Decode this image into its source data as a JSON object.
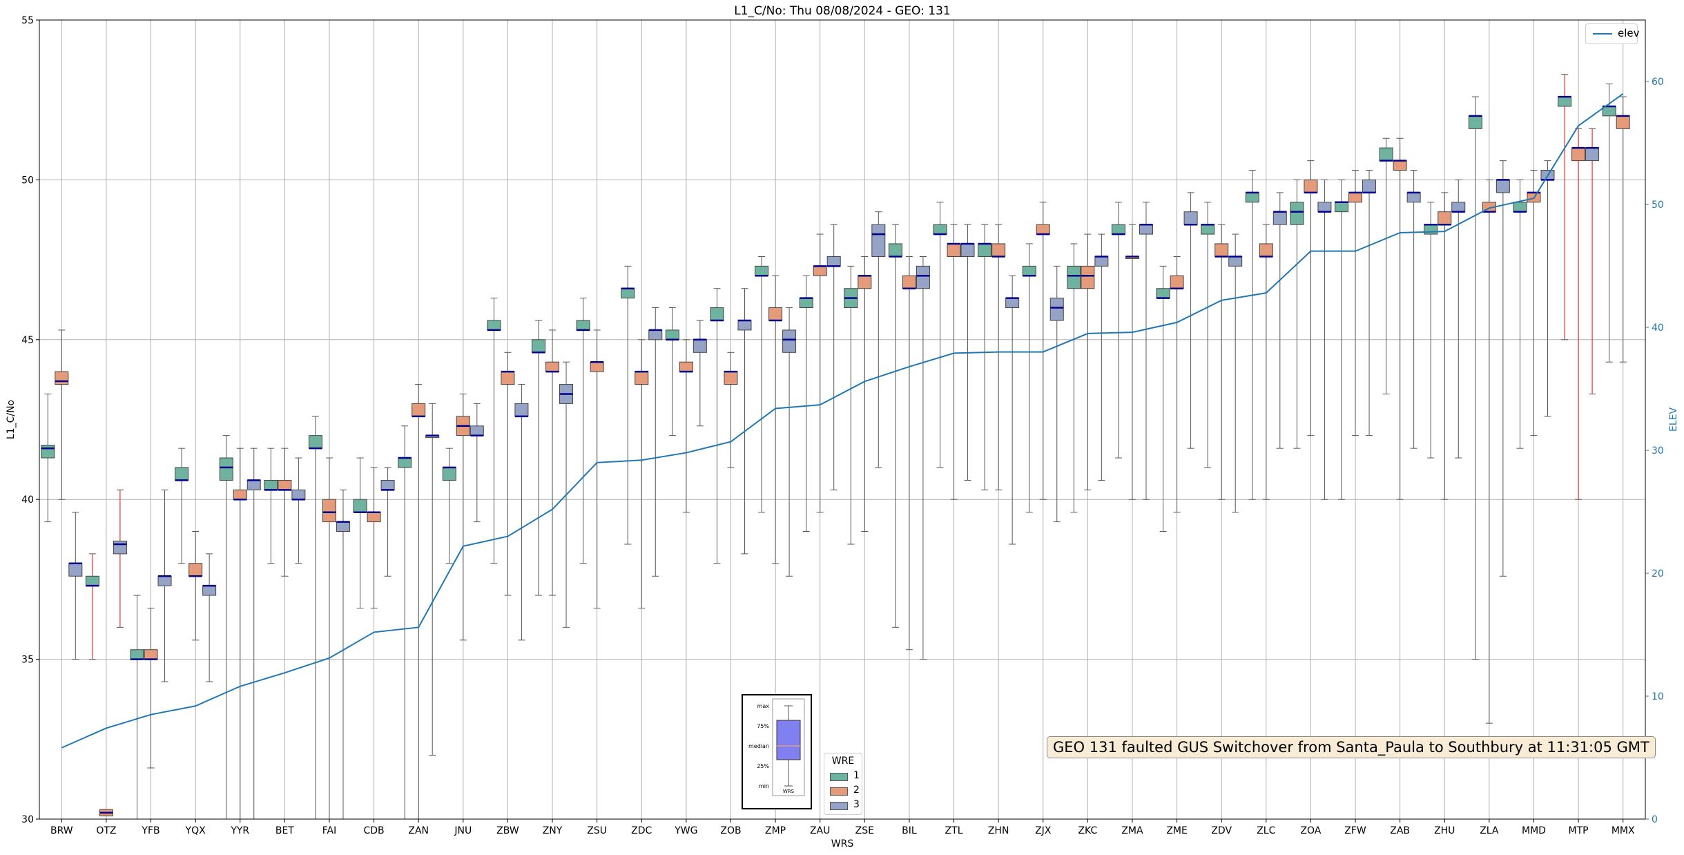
{
  "chart_data": {
    "type": "box",
    "title": "L1_C/No: Thu 08/08/2024 - GEO: 131",
    "xlabel": "WRS",
    "ylabel": "L1_C/No",
    "y2label": "ELEV",
    "ylim": [
      30,
      55
    ],
    "y2lim": [
      0,
      65
    ],
    "yticks": [
      30,
      35,
      40,
      45,
      50,
      55
    ],
    "y2ticks": [
      0,
      10,
      20,
      30,
      40,
      50,
      60
    ],
    "grid": true,
    "categories": [
      "BRW",
      "OTZ",
      "YFB",
      "YQX",
      "YYR",
      "BET",
      "FAI",
      "CDB",
      "ZAN",
      "JNU",
      "ZBW",
      "ZNY",
      "ZSU",
      "ZDC",
      "YWG",
      "ZOB",
      "ZMP",
      "ZAU",
      "ZSE",
      "BIL",
      "ZTL",
      "ZHN",
      "ZJX",
      "ZKC",
      "ZMA",
      "ZME",
      "ZDV",
      "ZLC",
      "ZOA",
      "ZFW",
      "ZAB",
      "ZHU",
      "ZLA",
      "MMD",
      "MTP",
      "MMX"
    ],
    "series": [
      {
        "name": "elev",
        "values": [
          5.8,
          7.4,
          8.5,
          9.2,
          10.8,
          11.9,
          13.1,
          15.2,
          15.6,
          22.2,
          23.0,
          25.2,
          29.0,
          29.2,
          29.8,
          30.7,
          33.4,
          33.7,
          35.6,
          36.8,
          37.9,
          38.0,
          38.0,
          39.5,
          39.6,
          40.4,
          42.2,
          42.8,
          46.2,
          46.2,
          47.7,
          47.8,
          49.7,
          50.5,
          56.4,
          59.0
        ]
      }
    ],
    "groups": [
      {
        "name": "1",
        "color": "#6db39f"
      },
      {
        "name": "2",
        "color": "#e59a7a"
      },
      {
        "name": "3",
        "color": "#94a3c6"
      }
    ],
    "boxes": [
      {
        "cat": 0,
        "g": 1,
        "min": 39.3,
        "q1": 41.3,
        "med": 41.6,
        "q3": 41.7,
        "max": 43.3
      },
      {
        "cat": 0,
        "g": 2,
        "min": 40.0,
        "q1": 43.6,
        "med": 43.7,
        "q3": 44.0,
        "max": 45.3
      },
      {
        "cat": 0,
        "g": 3,
        "min": 35.0,
        "q1": 37.6,
        "med": 38.0,
        "q3": 38.0,
        "max": 39.6
      },
      {
        "cat": 1,
        "g": 1,
        "min": 35.0,
        "q1": 37.3,
        "med": 37.3,
        "q3": 37.6,
        "max": 38.3,
        "red": true
      },
      {
        "cat": 1,
        "g": 2,
        "min": 30.1,
        "q1": 30.1,
        "med": 30.2,
        "q3": 30.3,
        "max": 30.3
      },
      {
        "cat": 1,
        "g": 3,
        "min": 36.0,
        "q1": 38.3,
        "med": 38.6,
        "q3": 38.7,
        "max": 40.3,
        "red": true
      },
      {
        "cat": 2,
        "g": 1,
        "min": 30.0,
        "q1": 35.0,
        "med": 35.0,
        "q3": 35.3,
        "max": 37.0
      },
      {
        "cat": 2,
        "g": 2,
        "min": 31.6,
        "q1": 35.0,
        "med": 35.0,
        "q3": 35.3,
        "max": 36.6
      },
      {
        "cat": 2,
        "g": 3,
        "min": 34.3,
        "q1": 37.3,
        "med": 37.6,
        "q3": 37.6,
        "max": 40.3
      },
      {
        "cat": 3,
        "g": 1,
        "min": 38.0,
        "q1": 40.6,
        "med": 40.6,
        "q3": 41.0,
        "max": 41.6
      },
      {
        "cat": 3,
        "g": 2,
        "min": 35.6,
        "q1": 37.6,
        "med": 37.6,
        "q3": 38.0,
        "max": 39.0
      },
      {
        "cat": 3,
        "g": 3,
        "min": 34.3,
        "q1": 37.0,
        "med": 37.3,
        "q3": 37.3,
        "max": 38.3
      },
      {
        "cat": 4,
        "g": 1,
        "min": 30.0,
        "q1": 40.6,
        "med": 41.0,
        "q3": 41.3,
        "max": 42.0
      },
      {
        "cat": 4,
        "g": 2,
        "min": 30.0,
        "q1": 40.0,
        "med": 40.0,
        "q3": 40.3,
        "max": 41.6
      },
      {
        "cat": 4,
        "g": 3,
        "min": 30.0,
        "q1": 40.3,
        "med": 40.6,
        "q3": 40.6,
        "max": 41.6
      },
      {
        "cat": 5,
        "g": 1,
        "min": 38.0,
        "q1": 40.3,
        "med": 40.3,
        "q3": 40.6,
        "max": 41.6
      },
      {
        "cat": 5,
        "g": 2,
        "min": 37.6,
        "q1": 40.3,
        "med": 40.3,
        "q3": 40.6,
        "max": 41.6
      },
      {
        "cat": 5,
        "g": 3,
        "min": 38.0,
        "q1": 40.0,
        "med": 40.0,
        "q3": 40.3,
        "max": 41.3
      },
      {
        "cat": 6,
        "g": 1,
        "min": 30.0,
        "q1": 41.6,
        "med": 41.6,
        "q3": 42.0,
        "max": 42.6
      },
      {
        "cat": 6,
        "g": 2,
        "min": 30.0,
        "q1": 39.3,
        "med": 39.6,
        "q3": 40.0,
        "max": 41.3
      },
      {
        "cat": 6,
        "g": 3,
        "min": 30.0,
        "q1": 39.0,
        "med": 39.3,
        "q3": 39.3,
        "max": 40.3
      },
      {
        "cat": 7,
        "g": 1,
        "min": 36.6,
        "q1": 39.6,
        "med": 39.6,
        "q3": 40.0,
        "max": 41.3
      },
      {
        "cat": 7,
        "g": 2,
        "min": 36.6,
        "q1": 39.3,
        "med": 39.6,
        "q3": 39.6,
        "max": 41.0
      },
      {
        "cat": 7,
        "g": 3,
        "min": 37.6,
        "q1": 40.3,
        "med": 40.3,
        "q3": 40.6,
        "max": 41.0
      },
      {
        "cat": 8,
        "g": 1,
        "min": 30.0,
        "q1": 41.0,
        "med": 41.3,
        "q3": 41.3,
        "max": 42.3
      },
      {
        "cat": 8,
        "g": 2,
        "min": 30.0,
        "q1": 42.6,
        "med": 42.6,
        "q3": 43.0,
        "max": 43.6
      },
      {
        "cat": 8,
        "g": 3,
        "min": 32.0,
        "q1": 42.0,
        "med": 42.0,
        "q3": 42.0,
        "max": 43.0
      },
      {
        "cat": 9,
        "g": 1,
        "min": 38.0,
        "q1": 40.6,
        "med": 41.0,
        "q3": 41.0,
        "max": 41.6
      },
      {
        "cat": 9,
        "g": 2,
        "min": 35.6,
        "q1": 42.0,
        "med": 42.3,
        "q3": 42.6,
        "max": 43.3
      },
      {
        "cat": 9,
        "g": 3,
        "min": 39.3,
        "q1": 42.0,
        "med": 42.0,
        "q3": 42.3,
        "max": 43.0
      },
      {
        "cat": 10,
        "g": 1,
        "min": 38.0,
        "q1": 45.3,
        "med": 45.3,
        "q3": 45.6,
        "max": 46.3
      },
      {
        "cat": 10,
        "g": 2,
        "min": 37.0,
        "q1": 43.6,
        "med": 44.0,
        "q3": 44.0,
        "max": 44.6
      },
      {
        "cat": 10,
        "g": 3,
        "min": 35.6,
        "q1": 42.6,
        "med": 42.6,
        "q3": 43.0,
        "max": 43.6
      },
      {
        "cat": 11,
        "g": 1,
        "min": 37.0,
        "q1": 44.6,
        "med": 44.6,
        "q3": 45.0,
        "max": 45.6
      },
      {
        "cat": 11,
        "g": 2,
        "min": 37.0,
        "q1": 44.0,
        "med": 44.0,
        "q3": 44.3,
        "max": 45.3
      },
      {
        "cat": 11,
        "g": 3,
        "min": 36.0,
        "q1": 43.0,
        "med": 43.3,
        "q3": 43.6,
        "max": 44.3
      },
      {
        "cat": 12,
        "g": 1,
        "min": 38.0,
        "q1": 45.3,
        "med": 45.3,
        "q3": 45.6,
        "max": 46.3
      },
      {
        "cat": 12,
        "g": 2,
        "min": 36.6,
        "q1": 44.0,
        "med": 44.3,
        "q3": 44.3,
        "max": 45.3
      },
      {
        "cat": 13,
        "g": 1,
        "min": 38.6,
        "q1": 46.3,
        "med": 46.6,
        "q3": 46.6,
        "max": 47.3
      },
      {
        "cat": 13,
        "g": 2,
        "min": 36.6,
        "q1": 43.6,
        "med": 44.0,
        "q3": 44.0,
        "max": 45.0
      },
      {
        "cat": 13,
        "g": 3,
        "min": 37.6,
        "q1": 45.0,
        "med": 45.3,
        "q3": 45.3,
        "max": 46.0
      },
      {
        "cat": 14,
        "g": 1,
        "min": 42.0,
        "q1": 45.0,
        "med": 45.0,
        "q3": 45.3,
        "max": 46.0
      },
      {
        "cat": 14,
        "g": 2,
        "min": 39.6,
        "q1": 44.0,
        "med": 44.0,
        "q3": 44.3,
        "max": 45.0
      },
      {
        "cat": 14,
        "g": 3,
        "min": 42.3,
        "q1": 44.6,
        "med": 45.0,
        "q3": 45.0,
        "max": 45.6
      },
      {
        "cat": 15,
        "g": 1,
        "min": 38.0,
        "q1": 45.6,
        "med": 45.6,
        "q3": 46.0,
        "max": 46.6
      },
      {
        "cat": 15,
        "g": 2,
        "min": 41.0,
        "q1": 43.6,
        "med": 44.0,
        "q3": 44.0,
        "max": 44.6
      },
      {
        "cat": 15,
        "g": 3,
        "min": 38.3,
        "q1": 45.3,
        "med": 45.6,
        "q3": 45.6,
        "max": 46.6
      },
      {
        "cat": 16,
        "g": 1,
        "min": 39.6,
        "q1": 47.0,
        "med": 47.0,
        "q3": 47.3,
        "max": 47.6
      },
      {
        "cat": 16,
        "g": 2,
        "min": 38.0,
        "q1": 45.6,
        "med": 45.6,
        "q3": 46.0,
        "max": 47.0
      },
      {
        "cat": 16,
        "g": 3,
        "min": 37.6,
        "q1": 44.6,
        "med": 45.0,
        "q3": 45.3,
        "max": 46.0
      },
      {
        "cat": 17,
        "g": 1,
        "min": 39.0,
        "q1": 46.0,
        "med": 46.3,
        "q3": 46.3,
        "max": 47.0
      },
      {
        "cat": 17,
        "g": 2,
        "min": 39.6,
        "q1": 47.0,
        "med": 47.3,
        "q3": 47.3,
        "max": 48.3
      },
      {
        "cat": 17,
        "g": 3,
        "min": 40.3,
        "q1": 47.3,
        "med": 47.3,
        "q3": 47.6,
        "max": 48.6
      },
      {
        "cat": 18,
        "g": 1,
        "min": 38.6,
        "q1": 46.0,
        "med": 46.3,
        "q3": 46.6,
        "max": 47.3
      },
      {
        "cat": 18,
        "g": 2,
        "min": 39.0,
        "q1": 46.6,
        "med": 47.0,
        "q3": 47.0,
        "max": 47.6
      },
      {
        "cat": 18,
        "g": 3,
        "min": 41.0,
        "q1": 47.6,
        "med": 48.3,
        "q3": 48.6,
        "max": 49.0
      },
      {
        "cat": 19,
        "g": 1,
        "min": 36.0,
        "q1": 47.6,
        "med": 47.6,
        "q3": 48.0,
        "max": 48.6
      },
      {
        "cat": 19,
        "g": 2,
        "min": 35.3,
        "q1": 46.6,
        "med": 46.6,
        "q3": 47.0,
        "max": 47.6
      },
      {
        "cat": 19,
        "g": 3,
        "min": 35.0,
        "q1": 46.6,
        "med": 47.0,
        "q3": 47.3,
        "max": 47.6
      },
      {
        "cat": 20,
        "g": 1,
        "min": 41.0,
        "q1": 48.3,
        "med": 48.3,
        "q3": 48.6,
        "max": 49.3
      },
      {
        "cat": 20,
        "g": 2,
        "min": 40.0,
        "q1": 47.6,
        "med": 48.0,
        "q3": 48.0,
        "max": 48.6
      },
      {
        "cat": 20,
        "g": 3,
        "min": 40.6,
        "q1": 47.6,
        "med": 48.0,
        "q3": 48.0,
        "max": 48.6
      },
      {
        "cat": 21,
        "g": 1,
        "min": 40.3,
        "q1": 47.6,
        "med": 48.0,
        "q3": 48.0,
        "max": 48.6
      },
      {
        "cat": 21,
        "g": 2,
        "min": 40.3,
        "q1": 47.6,
        "med": 47.6,
        "q3": 48.0,
        "max": 48.6
      },
      {
        "cat": 21,
        "g": 3,
        "min": 38.6,
        "q1": 46.0,
        "med": 46.3,
        "q3": 46.3,
        "max": 47.0
      },
      {
        "cat": 22,
        "g": 1,
        "min": 39.6,
        "q1": 47.0,
        "med": 47.0,
        "q3": 47.3,
        "max": 48.0
      },
      {
        "cat": 22,
        "g": 2,
        "min": 40.0,
        "q1": 48.3,
        "med": 48.3,
        "q3": 48.6,
        "max": 49.3
      },
      {
        "cat": 22,
        "g": 3,
        "min": 39.3,
        "q1": 45.6,
        "med": 46.0,
        "q3": 46.3,
        "max": 47.3
      },
      {
        "cat": 23,
        "g": 1,
        "min": 39.6,
        "q1": 46.6,
        "med": 47.0,
        "q3": 47.3,
        "max": 48.0
      },
      {
        "cat": 23,
        "g": 2,
        "min": 40.3,
        "q1": 46.6,
        "med": 47.0,
        "q3": 47.3,
        "max": 48.3
      },
      {
        "cat": 23,
        "g": 3,
        "min": 40.6,
        "q1": 47.3,
        "med": 47.6,
        "q3": 47.6,
        "max": 48.3
      },
      {
        "cat": 24,
        "g": 1,
        "min": 41.3,
        "q1": 48.3,
        "med": 48.3,
        "q3": 48.6,
        "max": 49.3
      },
      {
        "cat": 24,
        "g": 2,
        "min": 40.0,
        "q1": 47.6,
        "med": 47.6,
        "q3": 47.6,
        "max": 48.6
      },
      {
        "cat": 24,
        "g": 3,
        "min": 40.0,
        "q1": 48.3,
        "med": 48.6,
        "q3": 48.6,
        "max": 49.3
      },
      {
        "cat": 25,
        "g": 1,
        "min": 39.0,
        "q1": 46.3,
        "med": 46.3,
        "q3": 46.6,
        "max": 47.3
      },
      {
        "cat": 25,
        "g": 2,
        "min": 39.6,
        "q1": 46.6,
        "med": 46.6,
        "q3": 47.0,
        "max": 47.6
      },
      {
        "cat": 25,
        "g": 3,
        "min": 41.6,
        "q1": 48.6,
        "med": 48.6,
        "q3": 49.0,
        "max": 49.6
      },
      {
        "cat": 26,
        "g": 1,
        "min": 41.0,
        "q1": 48.3,
        "med": 48.6,
        "q3": 48.6,
        "max": 49.3
      },
      {
        "cat": 26,
        "g": 2,
        "min": 40.0,
        "q1": 47.6,
        "med": 47.6,
        "q3": 48.0,
        "max": 48.6
      },
      {
        "cat": 26,
        "g": 3,
        "min": 39.6,
        "q1": 47.3,
        "med": 47.6,
        "q3": 47.6,
        "max": 48.3
      },
      {
        "cat": 27,
        "g": 1,
        "min": 40.0,
        "q1": 49.3,
        "med": 49.6,
        "q3": 49.6,
        "max": 50.3
      },
      {
        "cat": 27,
        "g": 2,
        "min": 40.0,
        "q1": 47.6,
        "med": 47.6,
        "q3": 48.0,
        "max": 48.6
      },
      {
        "cat": 27,
        "g": 3,
        "min": 41.6,
        "q1": 48.6,
        "med": 49.0,
        "q3": 49.0,
        "max": 49.6
      },
      {
        "cat": 28,
        "g": 1,
        "min": 41.6,
        "q1": 48.6,
        "med": 49.0,
        "q3": 49.3,
        "max": 50.0
      },
      {
        "cat": 28,
        "g": 2,
        "min": 42.0,
        "q1": 49.6,
        "med": 49.6,
        "q3": 50.0,
        "max": 50.6
      },
      {
        "cat": 28,
        "g": 3,
        "min": 40.0,
        "q1": 49.0,
        "med": 49.0,
        "q3": 49.3,
        "max": 50.0
      },
      {
        "cat": 29,
        "g": 1,
        "min": 40.0,
        "q1": 49.0,
        "med": 49.3,
        "q3": 49.3,
        "max": 50.0
      },
      {
        "cat": 29,
        "g": 2,
        "min": 42.0,
        "q1": 49.3,
        "med": 49.6,
        "q3": 49.6,
        "max": 50.3
      },
      {
        "cat": 29,
        "g": 3,
        "min": 42.0,
        "q1": 49.6,
        "med": 49.6,
        "q3": 50.0,
        "max": 50.3
      },
      {
        "cat": 30,
        "g": 1,
        "min": 43.3,
        "q1": 50.6,
        "med": 50.6,
        "q3": 51.0,
        "max": 51.3
      },
      {
        "cat": 30,
        "g": 2,
        "min": 40.0,
        "q1": 50.3,
        "med": 50.6,
        "q3": 50.6,
        "max": 51.3
      },
      {
        "cat": 30,
        "g": 3,
        "min": 41.6,
        "q1": 49.3,
        "med": 49.6,
        "q3": 49.6,
        "max": 50.3
      },
      {
        "cat": 31,
        "g": 1,
        "min": 41.3,
        "q1": 48.3,
        "med": 48.6,
        "q3": 48.6,
        "max": 49.3
      },
      {
        "cat": 31,
        "g": 2,
        "min": 40.0,
        "q1": 48.6,
        "med": 48.6,
        "q3": 49.0,
        "max": 49.6
      },
      {
        "cat": 31,
        "g": 3,
        "min": 41.3,
        "q1": 49.0,
        "med": 49.0,
        "q3": 49.3,
        "max": 50.0
      },
      {
        "cat": 32,
        "g": 1,
        "min": 35.0,
        "q1": 51.6,
        "med": 52.0,
        "q3": 52.0,
        "max": 52.6
      },
      {
        "cat": 32,
        "g": 2,
        "min": 33.0,
        "q1": 49.0,
        "med": 49.0,
        "q3": 49.3,
        "max": 50.0
      },
      {
        "cat": 32,
        "g": 3,
        "min": 37.6,
        "q1": 49.6,
        "med": 50.0,
        "q3": 50.0,
        "max": 50.6
      },
      {
        "cat": 33,
        "g": 1,
        "min": 41.6,
        "q1": 49.0,
        "med": 49.0,
        "q3": 49.3,
        "max": 50.0
      },
      {
        "cat": 33,
        "g": 2,
        "min": 42.0,
        "q1": 49.3,
        "med": 49.6,
        "q3": 49.6,
        "max": 50.3
      },
      {
        "cat": 33,
        "g": 3,
        "min": 42.6,
        "q1": 50.0,
        "med": 50.0,
        "q3": 50.3,
        "max": 50.6
      },
      {
        "cat": 34,
        "g": 1,
        "min": 45.0,
        "q1": 52.3,
        "med": 52.6,
        "q3": 52.6,
        "max": 53.3,
        "red": true
      },
      {
        "cat": 34,
        "g": 2,
        "min": 40.0,
        "q1": 50.6,
        "med": 51.0,
        "q3": 51.0,
        "max": 51.6,
        "red": true
      },
      {
        "cat": 34,
        "g": 3,
        "min": 43.3,
        "q1": 50.6,
        "med": 51.0,
        "q3": 51.0,
        "max": 51.6,
        "red": true
      },
      {
        "cat": 35,
        "g": 1,
        "min": 44.3,
        "q1": 52.0,
        "med": 52.3,
        "q3": 52.3,
        "max": 53.0
      },
      {
        "cat": 35,
        "g": 2,
        "min": 44.3,
        "q1": 51.6,
        "med": 52.0,
        "q3": 52.0,
        "max": 52.6
      }
    ],
    "legend": {
      "title": "WRE",
      "position": "bottom-center",
      "elev_position": "top-right"
    },
    "annotation": "GEO 131 faulted GUS Switchover from Santa_Paula to Southbury at 11:31:05 GMT",
    "box_key": {
      "labels": [
        "max",
        "75%",
        "median",
        "25%",
        "min"
      ],
      "xlabel": "WRS"
    }
  }
}
